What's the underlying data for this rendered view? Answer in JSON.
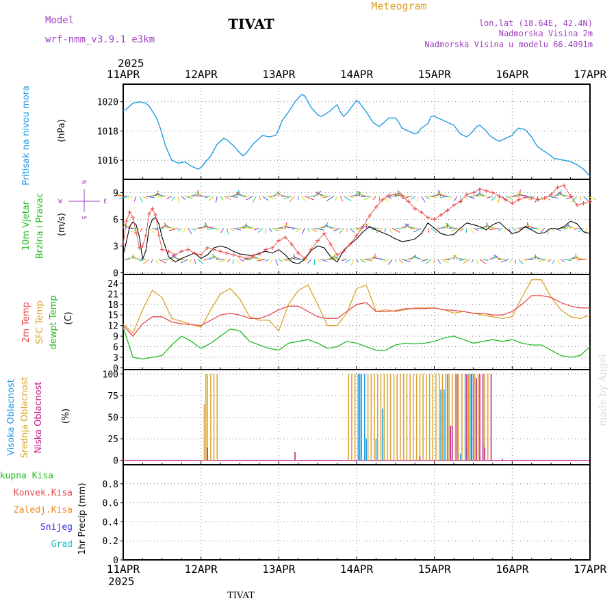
{
  "header": {
    "model_label": "Model",
    "model_name": "wrf-nmm_v3.9.1 e3km",
    "station": "TIVAT",
    "meteogram": "Meteogram",
    "lonlat": "lon,lat (18.64E, 42.4N)",
    "elevation": "Nadmorska Visina 2m",
    "model_elevation": "Nadmorska Visina u modelu 66.4091m",
    "footer_station": "TIVAT",
    "watermark": "made by Angel"
  },
  "colors": {
    "pressure": "#1e9be0",
    "wind_label": "#22bb22",
    "temp2m": "#e84848",
    "sfc": "#dba22a",
    "dewpt": "#22bb22",
    "visoka": "#1e9be0",
    "srednja": "#dba22a",
    "niska": "#c0157f",
    "ukupna": "#22bb22",
    "konvek": "#e84848",
    "zaledj": "#f08a22",
    "snijeg": "#3030e0",
    "grad": "#22bbbb",
    "purple": "#a040c0"
  },
  "chart_data": [
    {
      "type": "line",
      "panel": "pressure",
      "ylabel_title": "Pritisak na nivou mora",
      "ylabel_unit": "(hPa)",
      "time_axis": {
        "year": "2025",
        "ticks": [
          "11APR",
          "12APR",
          "13APR",
          "14APR",
          "15APR",
          "16APR",
          "17APR"
        ],
        "unit": "hours",
        "range": [
          0,
          144
        ]
      },
      "ylim": [
        1014.7,
        1021.2
      ],
      "yticks": [
        1016,
        1018,
        1020
      ],
      "series": [
        {
          "name": "Pritisak na nivou mora",
          "x": [
            0,
            1,
            3,
            5,
            7,
            8,
            10,
            11,
            12,
            13,
            15,
            17,
            19,
            21,
            23,
            24,
            25,
            27,
            29,
            31,
            32,
            34,
            36,
            37,
            38,
            40,
            42,
            43,
            45,
            47,
            48,
            49,
            51,
            53,
            55,
            56,
            58,
            60,
            61,
            62,
            64,
            66,
            67,
            68,
            69,
            71,
            72,
            73,
            75,
            77,
            79,
            80,
            82,
            84,
            85,
            86,
            88,
            90,
            91,
            92,
            94,
            95,
            96,
            98,
            100,
            102,
            103,
            104,
            106,
            108,
            109,
            110,
            112,
            113,
            115,
            116,
            118,
            120,
            121,
            122,
            124,
            126,
            127,
            128,
            130,
            132,
            133,
            134,
            136,
            138,
            140,
            142,
            144
          ],
          "values": [
            1019.4,
            1019.5,
            1019.9,
            1020.0,
            1019.9,
            1019.7,
            1019.0,
            1018.5,
            1017.8,
            1017.0,
            1016.0,
            1015.8,
            1015.9,
            1015.6,
            1015.4,
            1015.5,
            1015.8,
            1016.3,
            1017.1,
            1017.5,
            1017.4,
            1017.0,
            1016.5,
            1016.3,
            1016.5,
            1017.1,
            1017.5,
            1017.7,
            1017.6,
            1017.7,
            1018.1,
            1018.7,
            1019.3,
            1020.0,
            1020.5,
            1020.4,
            1019.6,
            1019.1,
            1019.0,
            1019.1,
            1019.4,
            1019.8,
            1019.3,
            1019.0,
            1019.2,
            1019.8,
            1020.1,
            1019.9,
            1019.3,
            1018.6,
            1018.3,
            1018.5,
            1018.9,
            1018.9,
            1018.6,
            1018.2,
            1018.0,
            1017.8,
            1017.9,
            1018.2,
            1018.5,
            1019.0,
            1019.0,
            1018.8,
            1018.6,
            1018.4,
            1018.1,
            1017.8,
            1017.6,
            1018.0,
            1018.3,
            1018.4,
            1018.0,
            1017.7,
            1017.4,
            1017.3,
            1017.5,
            1017.7,
            1018.0,
            1018.2,
            1018.1,
            1017.6,
            1017.2,
            1016.9,
            1016.6,
            1016.3,
            1016.1,
            1016.1,
            1016.0,
            1015.9,
            1015.7,
            1015.4,
            1014.9
          ]
        }
      ]
    },
    {
      "type": "line",
      "panel": "wind",
      "ylabel_title": [
        "10m Vjetar",
        "Brzina i Pravac"
      ],
      "ylabel_unit": "(m/s)",
      "compass": {
        "n": "N",
        "s": "S",
        "e": "E",
        "w": "W"
      },
      "ylim": [
        -0.2,
        10.5
      ],
      "yticks": [
        0,
        3,
        6,
        9
      ],
      "series": [
        {
          "name": "brzina (black)",
          "x": [
            0,
            1,
            2,
            3,
            4,
            5,
            6,
            7,
            8,
            9,
            10,
            11,
            12,
            14,
            16,
            18,
            20,
            22,
            24,
            26,
            28,
            30,
            32,
            34,
            36,
            38,
            40,
            42,
            44,
            46,
            48,
            50,
            52,
            54,
            56,
            58,
            60,
            62,
            64,
            66,
            68,
            70,
            72,
            74,
            76,
            78,
            80,
            82,
            84,
            86,
            88,
            90,
            92,
            94,
            96,
            98,
            100,
            102,
            104,
            106,
            108,
            110,
            112,
            114,
            116,
            118,
            120,
            122,
            124,
            126,
            128,
            130,
            132,
            134,
            136,
            138,
            140,
            142,
            144
          ],
          "values": [
            2.0,
            3.5,
            5.2,
            5.7,
            5.4,
            4.0,
            1.5,
            2.5,
            5.0,
            6.0,
            6.2,
            5.5,
            4.0,
            1.8,
            1.2,
            1.6,
            1.9,
            2.2,
            1.6,
            2.0,
            2.8,
            3.0,
            2.8,
            2.4,
            2.1,
            2.0,
            1.9,
            2.2,
            2.4,
            2.2,
            2.6,
            2.0,
            1.2,
            1.0,
            1.5,
            2.5,
            3.0,
            2.8,
            1.8,
            1.2,
            2.5,
            3.2,
            3.8,
            4.6,
            5.2,
            4.8,
            4.5,
            4.2,
            3.8,
            3.5,
            3.6,
            3.8,
            4.4,
            5.6,
            5.0,
            4.4,
            4.2,
            4.3,
            5.0,
            5.6,
            5.4,
            5.2,
            4.8,
            5.4,
            5.7,
            5.0,
            4.4,
            4.6,
            5.2,
            4.8,
            4.4,
            4.5,
            5.0,
            4.9,
            5.2,
            5.8,
            5.5,
            4.6,
            4.4
          ]
        },
        {
          "name": "udari (red +)",
          "x": [
            0,
            1,
            2,
            3,
            4,
            5,
            6,
            7,
            8,
            9,
            10,
            11,
            12,
            14,
            16,
            18,
            20,
            22,
            24,
            26,
            28,
            30,
            32,
            34,
            36,
            38,
            40,
            42,
            44,
            46,
            48,
            50,
            52,
            54,
            56,
            58,
            60,
            62,
            64,
            66,
            68,
            70,
            72,
            74,
            76,
            78,
            80,
            82,
            84,
            86,
            88,
            90,
            92,
            94,
            96,
            98,
            100,
            102,
            104,
            106,
            108,
            110,
            112,
            114,
            116,
            118,
            120,
            122,
            124,
            126,
            128,
            130,
            132,
            134,
            136,
            138,
            140,
            142,
            144
          ],
          "values": [
            3.2,
            5.8,
            6.8,
            6.2,
            4.5,
            2.8,
            3.0,
            4.2,
            6.6,
            7.2,
            6.5,
            4.2,
            2.6,
            2.4,
            2.0,
            2.4,
            2.6,
            2.2,
            2.0,
            2.8,
            2.6,
            2.4,
            2.2,
            2.0,
            1.8,
            1.6,
            1.9,
            2.1,
            2.6,
            2.8,
            3.6,
            4.0,
            3.2,
            2.2,
            1.6,
            2.6,
            3.6,
            4.4,
            3.2,
            2.0,
            2.4,
            3.2,
            4.2,
            5.2,
            6.4,
            7.4,
            8.2,
            8.7,
            8.8,
            8.6,
            8.0,
            7.2,
            6.8,
            6.2,
            6.0,
            6.5,
            7.0,
            7.6,
            8.0,
            8.8,
            9.0,
            9.4,
            9.2,
            9.0,
            8.6,
            8.2,
            7.8,
            8.2,
            8.5,
            8.4,
            8.2,
            8.4,
            8.8,
            9.6,
            9.8,
            8.6,
            7.6,
            7.8,
            8.0
          ]
        }
      ]
    },
    {
      "type": "line",
      "panel": "temperature",
      "ylabel_title": [
        "2m Temp",
        "SFC Temp",
        "dewpt Temp"
      ],
      "ylabel_unit": "(C)",
      "ylim": [
        -0.5,
        26.5
      ],
      "yticks": [
        0,
        3,
        6,
        9,
        12,
        15,
        18,
        21,
        24
      ],
      "x": [
        0,
        3,
        6,
        9,
        12,
        15,
        18,
        21,
        24,
        27,
        30,
        33,
        36,
        39,
        42,
        45,
        48,
        51,
        54,
        57,
        60,
        63,
        66,
        69,
        72,
        75,
        78,
        81,
        84,
        87,
        90,
        93,
        96,
        99,
        102,
        105,
        108,
        111,
        114,
        117,
        120,
        123,
        126,
        129,
        132,
        135,
        138,
        141,
        144
      ],
      "series": [
        {
          "name": "2m Temp",
          "values": [
            12.0,
            9.0,
            12.5,
            14.5,
            14.5,
            13.0,
            12.5,
            12.3,
            12.0,
            13.5,
            15.0,
            15.5,
            15.0,
            14.0,
            14.0,
            15.0,
            16.5,
            17.5,
            17.5,
            16.0,
            14.5,
            14.0,
            14.0,
            16.0,
            18.0,
            18.5,
            16.0,
            16.0,
            16.2,
            16.8,
            16.8,
            16.8,
            17.0,
            16.5,
            16.3,
            16.0,
            15.5,
            15.5,
            15.0,
            15.0,
            16.0,
            18.0,
            20.5,
            20.5,
            20.0,
            18.5,
            17.5,
            17.0,
            17.0
          ]
        },
        {
          "name": "SFC Temp",
          "values": [
            12.5,
            9.8,
            16.5,
            22.0,
            20.0,
            14.0,
            13.2,
            12.3,
            11.5,
            16.5,
            21.0,
            22.5,
            19.5,
            14.5,
            13.5,
            13.5,
            10.5,
            18.0,
            22.0,
            23.5,
            18.0,
            12.0,
            12.0,
            15.5,
            22.5,
            23.5,
            16.0,
            16.5,
            16.0,
            16.5,
            17.0,
            17.0,
            17.0,
            16.5,
            15.5,
            16.0,
            15.5,
            15.0,
            14.5,
            14.0,
            14.5,
            20.0,
            25.0,
            25.0,
            20.0,
            16.5,
            14.5,
            14.0,
            15.0
          ]
        },
        {
          "name": "dewpt Temp",
          "values": [
            11.5,
            3.0,
            2.5,
            3.0,
            3.5,
            6.5,
            9.0,
            7.5,
            5.5,
            7.0,
            9.0,
            11.0,
            10.5,
            7.5,
            6.5,
            5.5,
            5.0,
            7.0,
            7.5,
            8.0,
            7.0,
            5.5,
            6.0,
            7.5,
            7.0,
            6.0,
            5.0,
            5.0,
            6.5,
            7.0,
            6.8,
            7.0,
            7.5,
            8.5,
            9.0,
            8.0,
            7.0,
            7.5,
            8.0,
            7.5,
            8.0,
            7.0,
            6.5,
            6.5,
            5.0,
            3.5,
            3.0,
            3.5,
            6.0
          ]
        }
      ]
    },
    {
      "type": "bar",
      "panel": "cloud",
      "ylabel_title": [
        "Visoka Oblacnost",
        "Srednja Oblacnost",
        "Niska Oblacnost"
      ],
      "ylabel_unit": "(%)",
      "ylim": [
        -5,
        105
      ],
      "yticks": [
        0,
        25,
        50,
        75,
        100
      ],
      "series": [
        {
          "name": "Srednja Oblacnost",
          "x": [
            25,
            25.5,
            26,
            27,
            28,
            29,
            69.5,
            70.5,
            71.5,
            72.5,
            73.5,
            74.5,
            75.5,
            76.5,
            77.5,
            78.5,
            79.5,
            80.5,
            81.5,
            82.5,
            83.5,
            84.5,
            85.5,
            86.5,
            87.5,
            88.5,
            89.5,
            90.5,
            91.5,
            92.5,
            93.5,
            94.5,
            95.5,
            96.5,
            97.5,
            98.5,
            99.5,
            100.5,
            101.5,
            102.5,
            103.5,
            104.5,
            105.5,
            106.5,
            107.5,
            108.5,
            109.5,
            111.5,
            112.5
          ],
          "values": [
            65,
            100,
            100,
            100,
            100,
            100,
            100,
            100,
            100,
            100,
            100,
            100,
            100,
            100,
            100,
            100,
            100,
            100,
            100,
            100,
            100,
            100,
            100,
            100,
            100,
            100,
            100,
            100,
            100,
            100,
            100,
            100,
            100,
            100,
            100,
            100,
            100,
            100,
            100,
            100,
            100,
            100,
            100,
            100,
            100,
            100,
            100,
            100,
            100
          ]
        },
        {
          "name": "Visoka Oblacnost",
          "x": [
            72.5,
            73.0,
            73.5,
            74.5,
            75.0,
            78.0,
            80.0,
            98.0,
            99.0,
            100.0,
            104.0,
            105.5,
            106.0,
            107.0,
            108.0,
            111.0
          ],
          "values": [
            100,
            100,
            100,
            100,
            25,
            25,
            60,
            82,
            82,
            100,
            8,
            100,
            15,
            100,
            100,
            25
          ]
        },
        {
          "name": "Niska Oblacnost",
          "x": [
            26.0,
            53.0,
            91.5,
            101.0,
            101.5,
            103.0,
            106.0,
            107.5,
            109.0,
            110.0,
            111.0,
            111.5,
            113.5,
            117.0
          ],
          "values": [
            15,
            10,
            5,
            40,
            40,
            100,
            100,
            100,
            95,
            100,
            100,
            15,
            100,
            2
          ]
        }
      ]
    },
    {
      "type": "bar",
      "panel": "precip",
      "ylabel_title": "1hr Precip",
      "ylabel_unit": "(mm)",
      "ylim": [
        0,
        1.0
      ],
      "yticks": [
        0,
        0.2,
        0.4,
        0.6,
        0.8
      ],
      "series": [
        {
          "name": "Ukupna Kisa",
          "values": []
        },
        {
          "name": "Konvek.Kisa",
          "values": []
        },
        {
          "name": "Zaledj.Kisa",
          "values": []
        },
        {
          "name": "Snijeg",
          "values": []
        },
        {
          "name": "Grad",
          "values": []
        }
      ]
    }
  ]
}
